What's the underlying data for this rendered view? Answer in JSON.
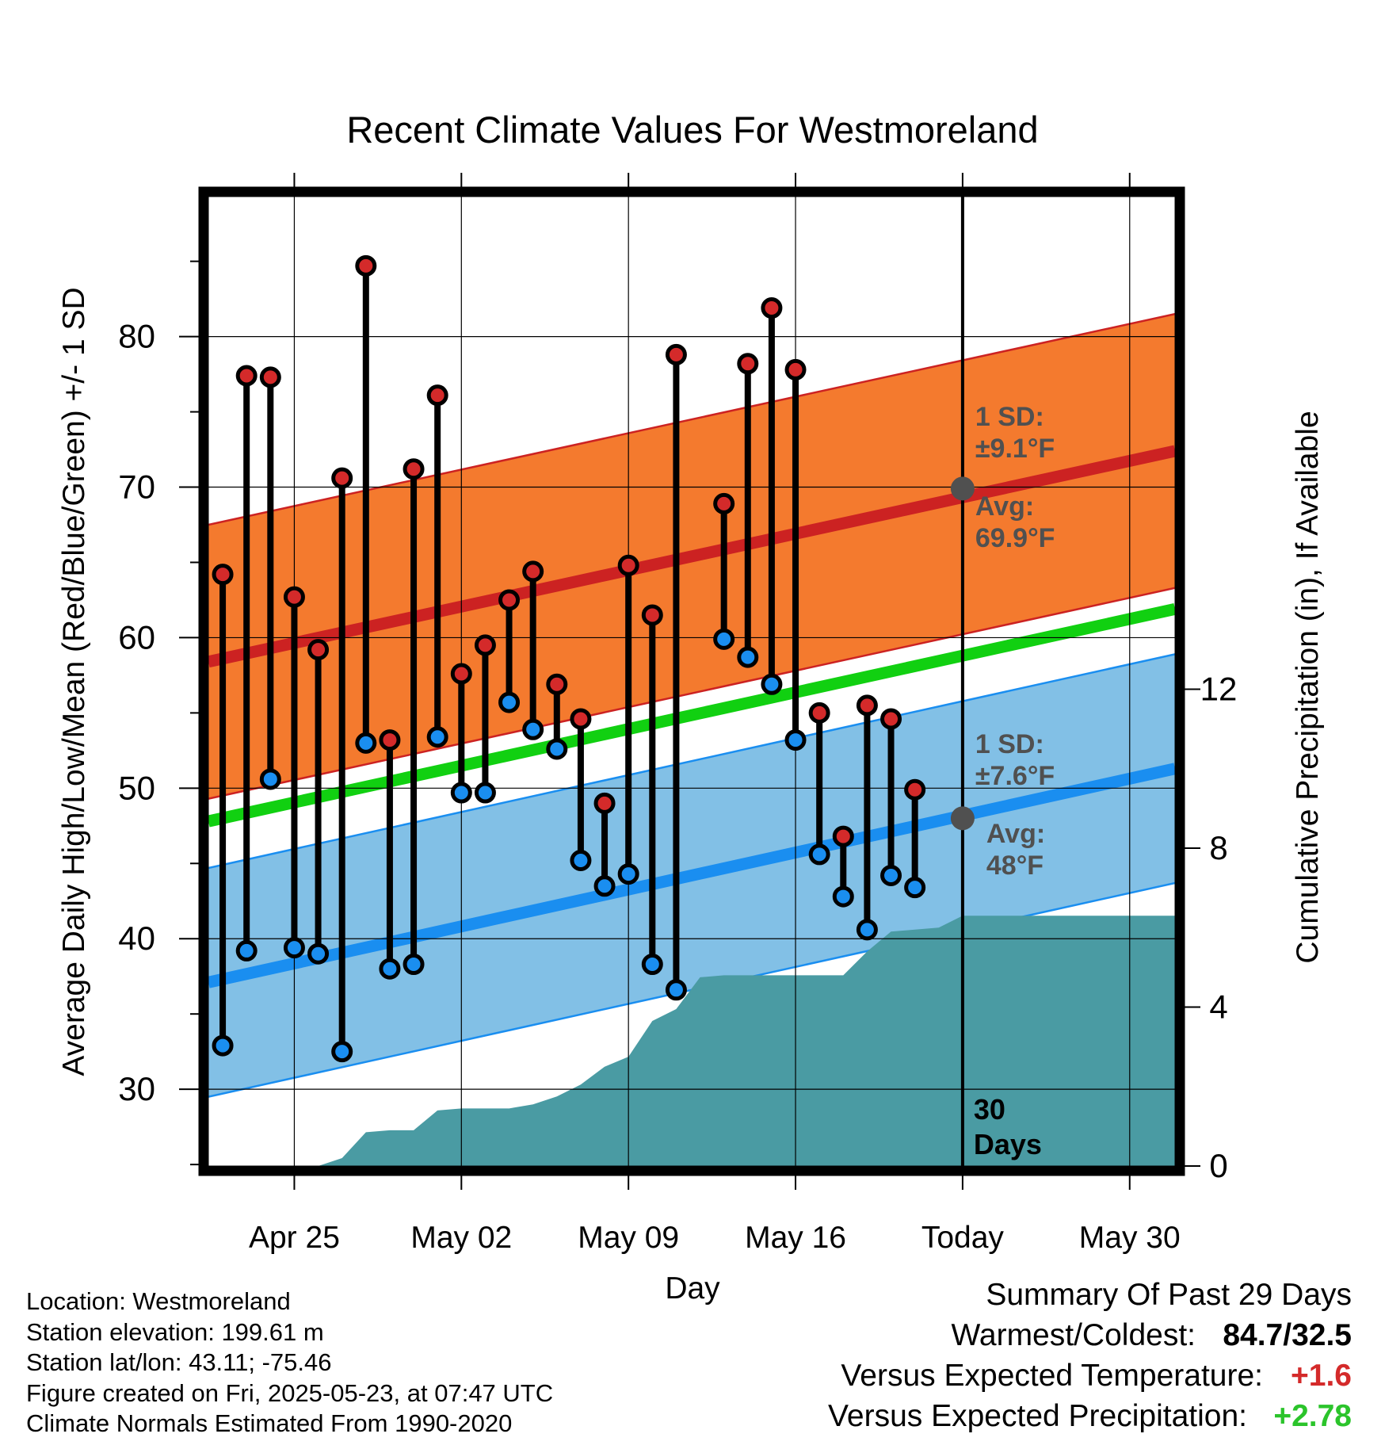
{
  "chart_data": {
    "type": "line",
    "title": "Recent Climate Values For Westmoreland",
    "xlabel": "Day",
    "ylabel": "Average Daily High/Low/Mean (Red/Blue/Green) +/- 1 SD",
    "y2label": "Cumulative Precipitation (in), If Available",
    "xticks": [
      {
        "day": 3,
        "label": "Apr 25"
      },
      {
        "day": 10,
        "label": "May 02"
      },
      {
        "day": 17,
        "label": "May 09"
      },
      {
        "day": 24,
        "label": "May 16"
      },
      {
        "day": 31,
        "label": "Today"
      },
      {
        "day": 38,
        "label": "May 30"
      }
    ],
    "yticks": [
      30,
      40,
      50,
      60,
      70,
      80
    ],
    "y2ticks": [
      0,
      4,
      8,
      12
    ],
    "xlim": [
      -0.6,
      39.9
    ],
    "ylim": [
      24.9,
      89.3
    ],
    "y2lim": [
      0,
      24.4
    ],
    "grid": true,
    "today_day": 31,
    "window_label": "30 Days",
    "daily_high": [
      64.2,
      77.4,
      77.3,
      62.7,
      59.2,
      70.6,
      84.7,
      53.2,
      71.2,
      76.1,
      57.6,
      59.5,
      62.5,
      64.4,
      56.9,
      54.6,
      49.0,
      64.8,
      61.5,
      78.8,
      null,
      68.9,
      78.2,
      81.9,
      77.8,
      55.0,
      46.8,
      55.5,
      54.6,
      49.9
    ],
    "daily_low": [
      32.9,
      39.2,
      50.6,
      39.4,
      39.0,
      32.5,
      53.0,
      38.0,
      38.3,
      53.4,
      49.7,
      49.7,
      55.7,
      53.9,
      52.6,
      45.2,
      43.5,
      44.3,
      38.3,
      36.6,
      null,
      59.9,
      58.7,
      56.9,
      53.2,
      45.6,
      42.8,
      40.6,
      44.2,
      43.4
    ],
    "normal_high": [
      58.4,
      72.4
    ],
    "normal_high_sd": 9.1,
    "normal_low": [
      37.1,
      51.3
    ],
    "normal_low_sd": 7.6,
    "normal_mean": [
      47.8,
      61.9
    ],
    "precip_cumulative": [
      0,
      0,
      0,
      0,
      0,
      0.2,
      0.85,
      0.9,
      0.9,
      1.4,
      1.45,
      1.45,
      1.45,
      1.55,
      1.75,
      2.05,
      2.5,
      2.75,
      3.65,
      3.95,
      4.75,
      4.8,
      4.8,
      4.8,
      4.8,
      4.8,
      4.8,
      5.4,
      5.9,
      5.95,
      6.0,
      6.3,
      6.3
    ],
    "today_high_sd_label": "1 SD:",
    "today_high_sd_value": "±9.1°F",
    "today_high_avg_label": "Avg:",
    "today_high_avg_value": "69.9°F",
    "today_low_sd_label": "1 SD:",
    "today_low_sd_value": "±7.6°F",
    "today_low_avg_label": "Avg:",
    "today_low_avg_value": "48°F",
    "today_high_avg": 69.9,
    "today_low_avg": 48.0,
    "colors": {
      "high_band": "#f47a2e",
      "high_line": "#cc2222",
      "low_band": "#82c0e6",
      "low_line": "#1a8ef0",
      "mean_line": "#11d011",
      "precip": "#4a9ba3",
      "high_marker": "#d42a2a",
      "low_marker": "#1a8ef0",
      "annotation": "#505050"
    }
  },
  "info": {
    "location": "Location: Westmoreland",
    "elevation": "Station elevation: 199.61 m",
    "latlon": "Station lat/lon: 43.11; -75.46",
    "created": "Figure created on Fri, 2025-05-23, at 07:47 UTC",
    "normals": "Climate Normals Estimated From 1990-2020"
  },
  "summary": {
    "title": "Summary Of Past 29 Days",
    "warm_cold_label": "Warmest/Coldest:",
    "warm_cold_value": "84.7/32.5",
    "temp_label": "Versus Expected Temperature:",
    "temp_value": "+1.6",
    "precip_label": "Versus Expected Precipitation:",
    "precip_value": "+2.78"
  }
}
